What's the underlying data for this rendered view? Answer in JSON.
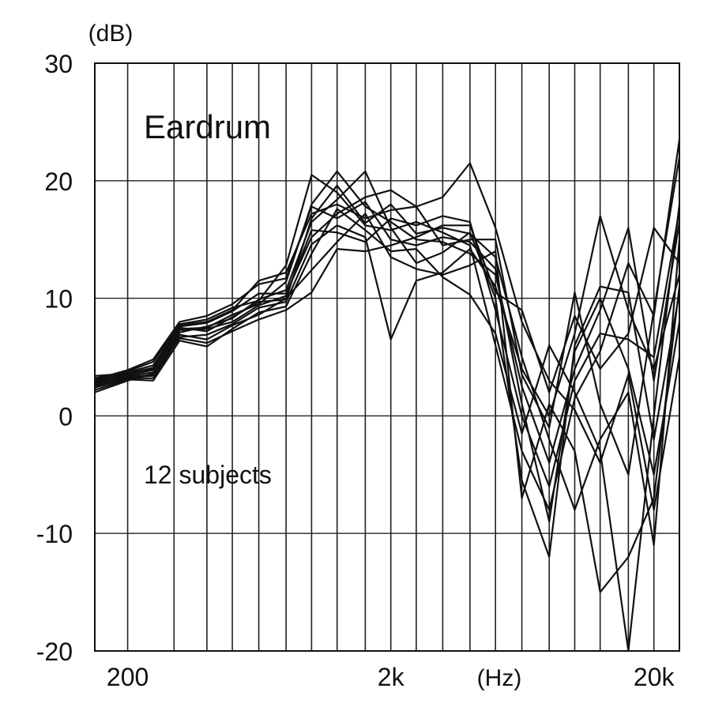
{
  "chart_data": {
    "type": "line",
    "title": "",
    "xlabel": "(Hz)",
    "ylabel": "(dB)",
    "x_scale": "log",
    "xlim": [
      150,
      25000
    ],
    "ylim": [
      -20,
      30
    ],
    "grid": true,
    "x_tick_labels": [
      {
        "value": 200,
        "label": "200"
      },
      {
        "value": 2000,
        "label": "2k"
      },
      {
        "value": 20000,
        "label": "20k"
      }
    ],
    "y_ticks": [
      {
        "value": 30,
        "label": "30"
      },
      {
        "value": 20,
        "label": "20"
      },
      {
        "value": 10,
        "label": "10"
      },
      {
        "value": 0,
        "label": "0"
      },
      {
        "value": -10,
        "label": "-10"
      },
      {
        "value": -20,
        "label": "-20"
      }
    ],
    "x_gridlines": [
      200,
      300,
      400,
      500,
      630,
      800,
      1000,
      1250,
      1600,
      2000,
      2500,
      3150,
      4000,
      5000,
      6300,
      8000,
      10000,
      12500,
      16000,
      20000
    ],
    "y_gridlines": [
      20,
      10,
      0,
      -10
    ],
    "annotations": [
      {
        "text": "Eardrum",
        "position": "top-left"
      },
      {
        "text": "12 subjects",
        "position": "middle-left"
      }
    ],
    "line_color": "#111111",
    "x": [
      150,
      200,
      250,
      315,
      400,
      500,
      630,
      800,
      1000,
      1250,
      1600,
      2000,
      2500,
      3150,
      4000,
      5000,
      6300,
      8000,
      10000,
      12500,
      16000,
      20000,
      25000
    ],
    "series": [
      {
        "values": [
          3.2,
          3.8,
          4.6,
          7.8,
          8.2,
          9.2,
          9.8,
          12.8,
          20.5,
          19.0,
          16.2,
          15.8,
          16.5,
          15.6,
          14.5,
          6.0,
          -3.0,
          -8.0,
          1.5,
          5.5,
          13.0,
          8.5,
          23.5
        ]
      },
      {
        "values": [
          2.9,
          3.6,
          4.1,
          7.4,
          7.5,
          8.6,
          9.5,
          11.4,
          18.0,
          20.8,
          17.8,
          16.5,
          15.0,
          14.8,
          13.8,
          12.0,
          2.5,
          -4.0,
          4.0,
          9.0,
          16.0,
          3.0,
          16.5
        ]
      },
      {
        "values": [
          2.6,
          3.3,
          3.4,
          7.1,
          7.6,
          8.3,
          9.9,
          10.7,
          16.5,
          18.4,
          20.8,
          16.0,
          13.0,
          13.9,
          15.6,
          10.0,
          -5.5,
          -12.0,
          6.0,
          11.0,
          10.5,
          -2.0,
          10.5
        ]
      },
      {
        "values": [
          3.0,
          3.7,
          4.3,
          7.6,
          7.9,
          8.9,
          10.4,
          10.4,
          15.2,
          17.2,
          18.6,
          19.2,
          17.8,
          18.6,
          21.5,
          16.0,
          8.0,
          3.0,
          0.5,
          -4.0,
          3.5,
          -8.0,
          5.0
        ]
      },
      {
        "values": [
          2.4,
          3.2,
          3.2,
          6.7,
          6.9,
          7.8,
          9.2,
          9.7,
          14.6,
          16.2,
          15.2,
          6.5,
          11.5,
          12.2,
          14.2,
          11.0,
          4.0,
          0.0,
          7.0,
          17.0,
          9.0,
          4.0,
          12.0
        ]
      },
      {
        "values": [
          2.7,
          3.5,
          3.9,
          7.5,
          7.2,
          8.4,
          9.7,
          9.9,
          16.8,
          19.6,
          16.4,
          18.0,
          15.5,
          16.0,
          15.5,
          13.5,
          5.0,
          -2.0,
          -8.0,
          -2.0,
          2.0,
          -11.0,
          15.0
        ]
      },
      {
        "values": [
          2.2,
          3.1,
          3.0,
          6.4,
          5.9,
          7.4,
          8.8,
          9.3,
          13.8,
          17.6,
          15.8,
          14.0,
          14.2,
          11.8,
          10.3,
          7.0,
          -1.5,
          6.0,
          2.0,
          -3.0,
          -20.0,
          0.0,
          18.0
        ]
      },
      {
        "values": [
          3.1,
          3.9,
          4.8,
          8.0,
          8.5,
          9.5,
          11.2,
          11.7,
          17.8,
          16.8,
          18.2,
          15.0,
          14.5,
          15.2,
          14.8,
          12.5,
          1.0,
          -9.0,
          5.5,
          10.0,
          4.0,
          -5.0,
          8.0
        ]
      },
      {
        "values": [
          2.8,
          3.4,
          3.7,
          7.3,
          7.4,
          8.0,
          9.4,
          10.2,
          15.8,
          15.6,
          14.8,
          16.8,
          16.2,
          17.0,
          16.5,
          9.0,
          0.0,
          -6.0,
          3.0,
          7.0,
          6.5,
          5.0,
          17.5
        ]
      },
      {
        "values": [
          2.5,
          3.3,
          3.5,
          6.9,
          6.5,
          7.7,
          8.6,
          10.0,
          12.4,
          14.8,
          17.2,
          13.5,
          12.5,
          12.0,
          12.8,
          14.0,
          -7.0,
          1.0,
          -3.0,
          -15.0,
          -12.0,
          -7.0,
          11.0
        ]
      },
      {
        "values": [
          2.0,
          3.0,
          3.6,
          6.6,
          6.2,
          7.2,
          8.2,
          9.0,
          10.5,
          14.2,
          14.0,
          14.5,
          15.2,
          16.2,
          16.2,
          10.5,
          9.0,
          2.0,
          8.5,
          4.0,
          7.0,
          16.0,
          13.0
        ]
      },
      {
        "values": [
          3.4,
          3.6,
          4.0,
          7.7,
          8.0,
          9.0,
          11.5,
          12.2,
          17.2,
          18.0,
          16.8,
          17.5,
          17.8,
          14.5,
          15.0,
          15.0,
          3.5,
          -1.0,
          10.5,
          1.0,
          -5.0,
          9.0,
          22.0
        ]
      }
    ]
  }
}
